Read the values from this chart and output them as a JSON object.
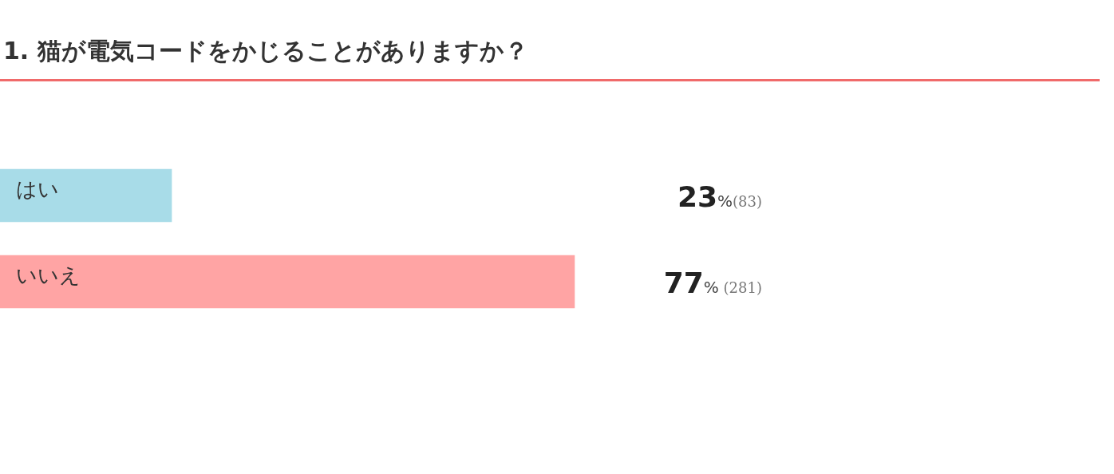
{
  "chart_data": {
    "type": "bar",
    "orientation": "horizontal",
    "title": "1. 猫が電気コードをかじることがありますか？",
    "categories": [
      "はい",
      "いいえ"
    ],
    "values": [
      23,
      77
    ],
    "colors": [
      "#a8dce8",
      "#ffa4a4"
    ],
    "value_labels": [
      "23%(83)",
      "77% (281)"
    ],
    "grid": false,
    "legend": false,
    "tick_labels": "y"
  }
}
